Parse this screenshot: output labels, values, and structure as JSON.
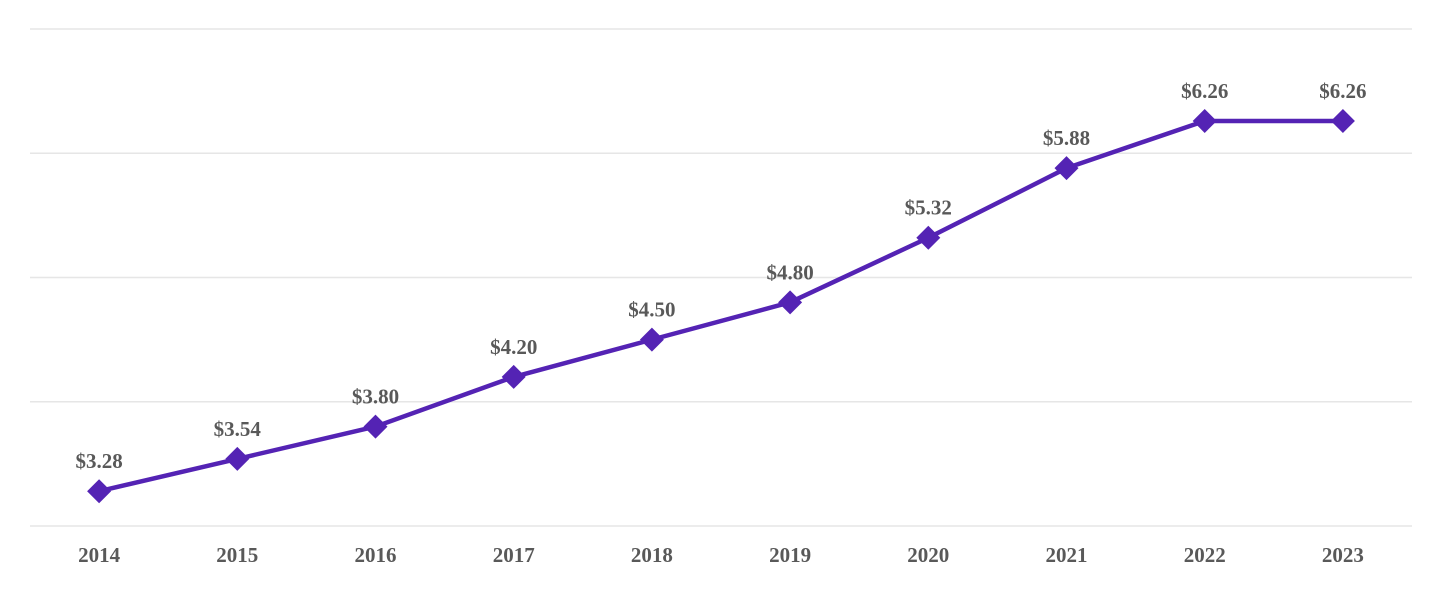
{
  "chart_data": {
    "type": "line",
    "title": "",
    "xlabel": "",
    "ylabel": "",
    "categories": [
      "2014",
      "2015",
      "2016",
      "2017",
      "2018",
      "2019",
      "2020",
      "2021",
      "2022",
      "2023"
    ],
    "series": [
      {
        "values": [
          3.28,
          3.54,
          3.8,
          4.2,
          4.5,
          4.8,
          5.32,
          5.88,
          6.26,
          6.26
        ],
        "labels": [
          "$3.28",
          "$3.54",
          "$3.80",
          "$4.20",
          "$4.50",
          "$4.80",
          "$5.32",
          "$5.88",
          "$6.26",
          "$6.26"
        ]
      }
    ],
    "ylim": [
      3,
      7
    ],
    "grid_step": 1,
    "grid": "horizontal",
    "legend": "none",
    "marker": "diamond",
    "colors": {
      "line": "#5423b4",
      "marker": "#5423b4",
      "data_label": "#595959",
      "axis_label": "#595959",
      "gridline": "#e6e6e6",
      "background": "#ffffff"
    }
  }
}
